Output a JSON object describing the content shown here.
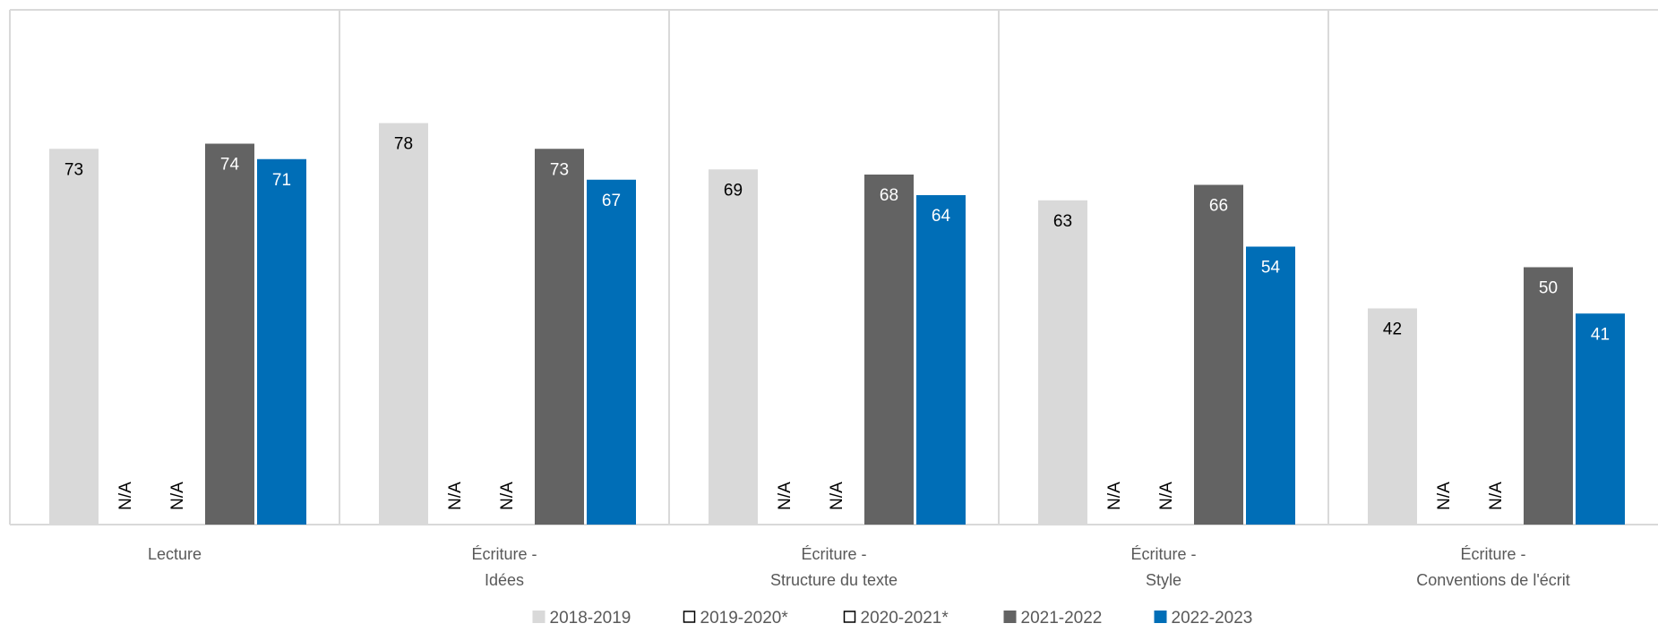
{
  "chart_data": {
    "type": "bar",
    "categories": [
      [
        "Lecture"
      ],
      [
        "Écriture -",
        "Idées"
      ],
      [
        "Écriture -",
        "Structure du texte"
      ],
      [
        "Écriture -",
        "Style"
      ],
      [
        "Écriture -",
        "Conventions de l'écrit"
      ]
    ],
    "series": [
      {
        "name": "2018-2019",
        "values": [
          73,
          78,
          69,
          63,
          42
        ],
        "color": "#d9d9d9",
        "label_color": "#000000",
        "legend_swatch": "filled"
      },
      {
        "name": "2019-2020*",
        "values": [
          null,
          null,
          null,
          null,
          null
        ],
        "color": "#ffffff",
        "label_color": "#000000",
        "legend_swatch": "outline"
      },
      {
        "name": "2020-2021*",
        "values": [
          null,
          null,
          null,
          null,
          null
        ],
        "color": "#ffffff",
        "label_color": "#000000",
        "legend_swatch": "outline"
      },
      {
        "name": "2021-2022",
        "values": [
          74,
          73,
          68,
          66,
          50
        ],
        "color": "#636363",
        "label_color": "#ffffff",
        "legend_swatch": "filled"
      },
      {
        "name": "2022-2023",
        "values": [
          71,
          67,
          64,
          54,
          41
        ],
        "color": "#006eb7",
        "label_color": "#ffffff",
        "legend_swatch": "filled"
      }
    ],
    "missing_label": "N/A",
    "ylim": [
      0,
      100
    ],
    "legend": "bottom-center",
    "grid": false,
    "category_separators": true
  }
}
